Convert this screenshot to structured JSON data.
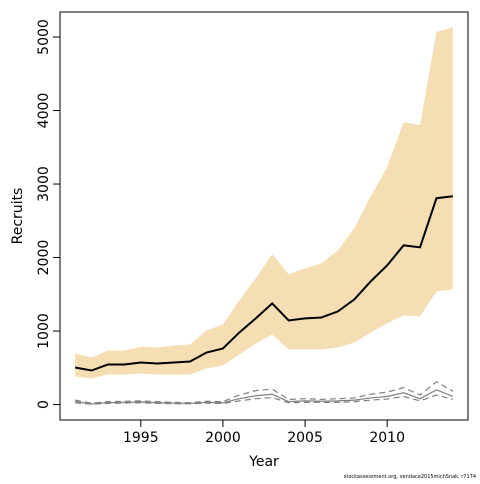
{
  "chart_data": {
    "type": "line",
    "xlabel": "Year",
    "ylabel": "Recruits",
    "footnote": "stockassessment.org, vendace2015michSnak, r7174",
    "x": [
      1991,
      1992,
      1993,
      1994,
      1995,
      1996,
      1997,
      1998,
      1999,
      2000,
      2001,
      2002,
      2003,
      2004,
      2005,
      2006,
      2007,
      2008,
      2009,
      2010,
      2011,
      2012,
      2013,
      2014
    ],
    "band": {
      "color": "#f5deb3",
      "lower": [
        381,
        354,
        409,
        409,
        422,
        409,
        409,
        409,
        490,
        531,
        681,
        831,
        954,
        749,
        749,
        749,
        777,
        845,
        981,
        1104,
        1213,
        1199,
        1540,
        1567
      ],
      "upper": [
        695,
        640,
        736,
        736,
        790,
        777,
        804,
        817,
        1008,
        1090,
        1417,
        1717,
        2044,
        1771,
        1853,
        1921,
        2098,
        2398,
        2834,
        3229,
        3842,
        3801,
        5068,
        5136
      ]
    },
    "series": [
      {
        "color": "#000000",
        "dash": false,
        "width": 2,
        "values": [
          504,
          463,
          545,
          545,
          572,
          558,
          572,
          586,
          708,
          763,
          981,
          1172,
          1376,
          1144,
          1172,
          1185,
          1267,
          1430,
          1676,
          1894,
          2166,
          2139,
          2807,
          2834
        ]
      },
      {
        "color": "#808080",
        "dash": false,
        "width": 1.2,
        "values": [
          40,
          10,
          25,
          30,
          35,
          25,
          20,
          15,
          30,
          25,
          80,
          120,
          140,
          40,
          50,
          45,
          50,
          60,
          90,
          110,
          160,
          80,
          200,
          110
        ]
      },
      {
        "color": "#808080",
        "dash": true,
        "width": 1.2,
        "values": [
          60,
          20,
          40,
          45,
          50,
          40,
          30,
          25,
          45,
          40,
          130,
          190,
          210,
          70,
          80,
          70,
          80,
          90,
          140,
          170,
          230,
          130,
          310,
          180
        ]
      },
      {
        "color": "#808080",
        "dash": true,
        "width": 1.2,
        "values": [
          25,
          5,
          15,
          20,
          25,
          15,
          12,
          10,
          20,
          15,
          50,
          80,
          95,
          25,
          30,
          30,
          30,
          40,
          60,
          75,
          110,
          50,
          130,
          70
        ]
      }
    ],
    "xlim": [
      1990.08,
      2014.92
    ],
    "xticks": [
      1995,
      2000,
      2005,
      2010
    ],
    "ylim": [
      -210,
      5340
    ],
    "yticks": [
      0,
      1000,
      2000,
      3000,
      4000,
      5000
    ]
  }
}
